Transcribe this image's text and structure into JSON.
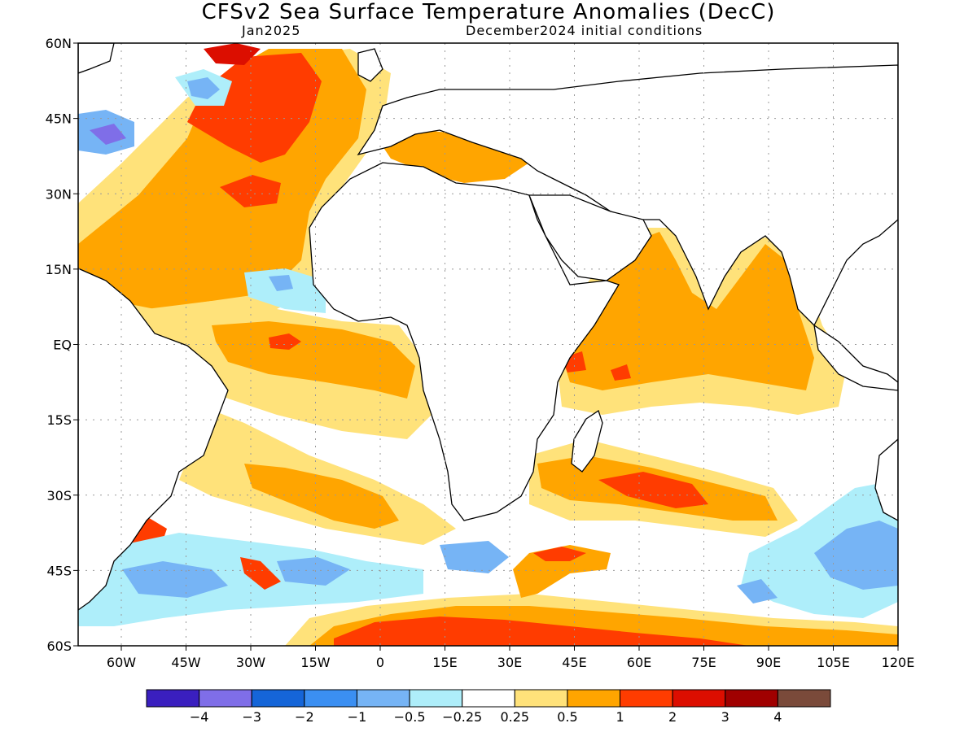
{
  "title": "CFSv2 Sea Surface Temperature Anomalies (DecC)",
  "subtitle_left": "Jan2025",
  "subtitle_right": "December2024 initial conditions",
  "map": {
    "lon_range": [
      -70,
      120
    ],
    "lat_range": [
      -60,
      60
    ],
    "lat_labels": [
      "60N",
      "45N",
      "30N",
      "15N",
      "EQ",
      "15S",
      "30S",
      "45S",
      "60S"
    ],
    "lon_labels": [
      "60W",
      "45W",
      "30W",
      "15W",
      "0",
      "15E",
      "30E",
      "45E",
      "60E",
      "75E",
      "90E",
      "105E",
      "120E"
    ],
    "ocean_anomaly_color": "#ffffff",
    "land_color": "#ffffff",
    "coast_color": "#000000"
  },
  "colorbar": {
    "colors": [
      "#3a1fbf",
      "#7f6ee8",
      "#1565d8",
      "#3b8ff2",
      "#76b4f5",
      "#aeeefa",
      "#ffffff",
      "#ffe27a",
      "#ffa500",
      "#ff3c00",
      "#dc0e00",
      "#a00000",
      "#7a4a3a"
    ],
    "labels": [
      "−4",
      "−3",
      "−2",
      "−1",
      "−0.5",
      "−0.25",
      "0.25",
      "0.5",
      "1",
      "2",
      "3",
      "4"
    ]
  }
}
